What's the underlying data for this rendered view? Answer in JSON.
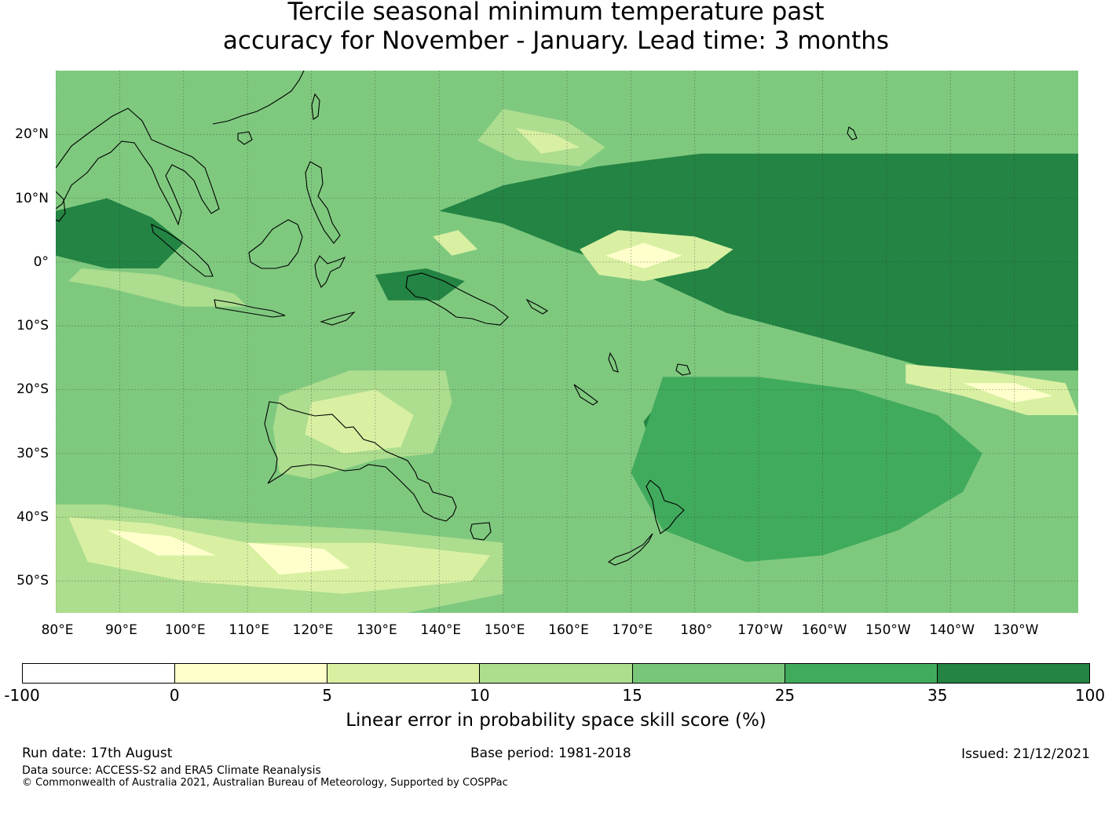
{
  "title": {
    "line1": "Tercile seasonal minimum temperature past",
    "line2": "accuracy for November - January. Lead time: 3 months"
  },
  "map": {
    "lon_range": [
      80,
      240
    ],
    "lat_range": [
      -55,
      30
    ],
    "gridlines": true,
    "lat_ticks": [
      {
        "lat": 20,
        "label": "20°N"
      },
      {
        "lat": 10,
        "label": "10°N"
      },
      {
        "lat": 0,
        "label": "0°"
      },
      {
        "lat": -10,
        "label": "10°S"
      },
      {
        "lat": -20,
        "label": "20°S"
      },
      {
        "lat": -30,
        "label": "30°S"
      },
      {
        "lat": -40,
        "label": "40°S"
      },
      {
        "lat": -50,
        "label": "50°S"
      }
    ],
    "lon_ticks": [
      {
        "lon": 80,
        "label": "80°E"
      },
      {
        "lon": 90,
        "label": "90°E"
      },
      {
        "lon": 100,
        "label": "100°E"
      },
      {
        "lon": 110,
        "label": "110°E"
      },
      {
        "lon": 120,
        "label": "120°E"
      },
      {
        "lon": 130,
        "label": "130°E"
      },
      {
        "lon": 140,
        "label": "140°E"
      },
      {
        "lon": 150,
        "label": "150°E"
      },
      {
        "lon": 160,
        "label": "160°E"
      },
      {
        "lon": 170,
        "label": "170°E"
      },
      {
        "lon": 180,
        "label": "180°"
      },
      {
        "lon": 190,
        "label": "170°W"
      },
      {
        "lon": 200,
        "label": "160°W"
      },
      {
        "lon": 210,
        "label": "150°W"
      },
      {
        "lon": 220,
        "label": "140°W"
      },
      {
        "lon": 230,
        "label": "130°W"
      }
    ],
    "skill_regions": [
      {
        "level": 6,
        "polygon": [
          [
            181,
            17
          ],
          [
            240,
            17
          ],
          [
            240,
            -17
          ],
          [
            218,
            -17
          ],
          [
            200,
            -12
          ],
          [
            185,
            -8
          ],
          [
            172,
            -2
          ],
          [
            160,
            2
          ],
          [
            150,
            6
          ],
          [
            140,
            8
          ],
          [
            150,
            12
          ],
          [
            165,
            15
          ]
        ]
      },
      {
        "level": 6,
        "polygon": [
          [
            176,
            -20
          ],
          [
            200,
            -20
          ],
          [
            215,
            -24
          ],
          [
            224,
            -30
          ],
          [
            222,
            -35
          ],
          [
            212,
            -40
          ],
          [
            200,
            -43
          ],
          [
            188,
            -42
          ],
          [
            178,
            -40
          ],
          [
            174,
            -32
          ],
          [
            172,
            -25
          ]
        ]
      },
      {
        "level": 6,
        "polygon": [
          [
            80,
            8
          ],
          [
            88,
            10
          ],
          [
            95,
            7
          ],
          [
            100,
            3
          ],
          [
            96,
            -1
          ],
          [
            88,
            -1
          ],
          [
            80,
            1
          ]
        ]
      },
      {
        "level": 5,
        "polygon": [
          [
            170,
            -33
          ],
          [
            175,
            -42
          ],
          [
            188,
            -47
          ],
          [
            200,
            -46
          ],
          [
            212,
            -42
          ],
          [
            222,
            -36
          ],
          [
            225,
            -30
          ],
          [
            218,
            -24
          ],
          [
            205,
            -20
          ],
          [
            190,
            -18
          ],
          [
            175,
            -18
          ]
        ]
      },
      {
        "level": 2,
        "polygon": [
          [
            162,
            2
          ],
          [
            168,
            5
          ],
          [
            180,
            4
          ],
          [
            186,
            2
          ],
          [
            182,
            -1
          ],
          [
            172,
            -3
          ],
          [
            165,
            -2
          ]
        ]
      },
      {
        "level": 1,
        "polygon": [
          [
            166,
            1
          ],
          [
            172,
            3
          ],
          [
            178,
            1
          ],
          [
            172,
            -1
          ]
        ]
      },
      {
        "level": 2,
        "polygon": [
          [
            213,
            -16
          ],
          [
            225,
            -17
          ],
          [
            238,
            -19
          ],
          [
            240,
            -24
          ],
          [
            232,
            -24
          ],
          [
            222,
            -21
          ],
          [
            213,
            -19
          ]
        ]
      },
      {
        "level": 1,
        "polygon": [
          [
            222,
            -19
          ],
          [
            230,
            -19
          ],
          [
            236,
            -21
          ],
          [
            230,
            -22
          ]
        ]
      },
      {
        "level": 3,
        "polygon": [
          [
            150,
            24
          ],
          [
            160,
            22
          ],
          [
            166,
            18
          ],
          [
            162,
            15
          ],
          [
            152,
            16
          ],
          [
            146,
            19
          ]
        ]
      },
      {
        "level": 2,
        "polygon": [
          [
            152,
            21
          ],
          [
            158,
            20
          ],
          [
            162,
            18
          ],
          [
            156,
            17
          ]
        ]
      },
      {
        "level": 2,
        "polygon": [
          [
            139,
            4
          ],
          [
            143,
            5
          ],
          [
            146,
            2
          ],
          [
            142,
            1
          ]
        ]
      },
      {
        "level": 3,
        "polygon": [
          [
            84,
            -1
          ],
          [
            96,
            -2
          ],
          [
            108,
            -5
          ],
          [
            110,
            -7
          ],
          [
            100,
            -7
          ],
          [
            88,
            -4
          ],
          [
            82,
            -3
          ]
        ]
      },
      {
        "level": 3,
        "polygon": [
          [
            80,
            -38
          ],
          [
            88,
            -38
          ],
          [
            100,
            -40
          ],
          [
            112,
            -41
          ],
          [
            130,
            -42
          ],
          [
            150,
            -44
          ],
          [
            150,
            -52
          ],
          [
            135,
            -55
          ],
          [
            110,
            -55
          ],
          [
            90,
            -55
          ],
          [
            80,
            -55
          ]
        ]
      },
      {
        "level": 2,
        "polygon": [
          [
            82,
            -40
          ],
          [
            95,
            -41
          ],
          [
            110,
            -44
          ],
          [
            130,
            -44
          ],
          [
            148,
            -46
          ],
          [
            145,
            -50
          ],
          [
            125,
            -52
          ],
          [
            100,
            -50
          ],
          [
            85,
            -47
          ]
        ]
      },
      {
        "level": 1,
        "polygon": [
          [
            88,
            -42
          ],
          [
            98,
            -43
          ],
          [
            105,
            -46
          ],
          [
            96,
            -46
          ]
        ]
      },
      {
        "level": 1,
        "polygon": [
          [
            110,
            -44
          ],
          [
            122,
            -45
          ],
          [
            126,
            -48
          ],
          [
            115,
            -49
          ]
        ]
      },
      {
        "level": 3,
        "polygon": [
          [
            115,
            -21
          ],
          [
            126,
            -17
          ],
          [
            136,
            -17
          ],
          [
            141,
            -17
          ],
          [
            142,
            -22
          ],
          [
            139,
            -30
          ],
          [
            130,
            -31
          ],
          [
            120,
            -34
          ],
          [
            115,
            -33
          ],
          [
            114,
            -26
          ]
        ]
      },
      {
        "level": 2,
        "polygon": [
          [
            120,
            -22
          ],
          [
            130,
            -20
          ],
          [
            136,
            -24
          ],
          [
            134,
            -29
          ],
          [
            125,
            -30
          ],
          [
            119,
            -27
          ]
        ]
      },
      {
        "level": 6,
        "polygon": [
          [
            130,
            -2
          ],
          [
            138,
            -1
          ],
          [
            144,
            -3
          ],
          [
            140,
            -6
          ],
          [
            132,
            -6
          ]
        ]
      }
    ]
  },
  "colorbar": {
    "label": "Linear error in probability space skill score (%)",
    "ticks": [
      "-100",
      "0",
      "5",
      "10",
      "15",
      "25",
      "35",
      "100"
    ],
    "colors": [
      "#ffffff",
      "#ffffcc",
      "#d9f0a3",
      "#addd8e",
      "#78c679",
      "#41ab5d",
      "#238443"
    ]
  },
  "footer": {
    "run_date": "Run date: 17th August",
    "base_period": "Base period: 1981-2018",
    "issued": "Issued: 21/12/2021",
    "data_source": "Data source: ACCESS-S2 and ERA5 Climate Reanalysis",
    "copyright": "© Commonwealth of Australia 2021, Australian Bureau of Meteorology, Supported by COSPPac"
  }
}
